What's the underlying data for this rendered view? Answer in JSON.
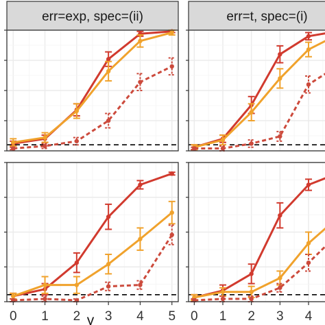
{
  "chart_data": {
    "type": "line",
    "x": [
      0,
      1,
      2,
      3,
      4,
      5
    ],
    "xlabel": "γ",
    "xlim": [
      -0.2,
      5.2
    ],
    "ylim": [
      0,
      1
    ],
    "grid": true,
    "colors": {
      "red": "#d13a2e",
      "orange": "#f0a22c",
      "dashed_red": "#cc4a3c",
      "reference": "#000000",
      "strip_bg": "#d9d9d9",
      "grid": "#ebebeb"
    },
    "panels": [
      {
        "strip_label": "err=exp, spec=(ii)",
        "reference_line": 0.05,
        "series": [
          {
            "color": "red",
            "dash": false,
            "values": [
              0.06,
              0.1,
              0.34,
              0.76,
              0.97,
              0.99
            ],
            "errors": [
              0.02,
              0.03,
              0.05,
              0.06,
              0.02,
              0.01
            ]
          },
          {
            "color": "orange",
            "dash": false,
            "values": [
              0.07,
              0.11,
              0.33,
              0.66,
              0.91,
              0.98
            ],
            "errors": [
              0.03,
              0.04,
              0.06,
              0.08,
              0.05,
              0.02
            ]
          },
          {
            "color": "dashed_red",
            "dash": true,
            "values": [
              0.02,
              0.04,
              0.08,
              0.25,
              0.57,
              0.7
            ],
            "errors": [
              0.01,
              0.02,
              0.03,
              0.06,
              0.07,
              0.07
            ]
          }
        ]
      },
      {
        "strip_label": "err=t, spec=(i)",
        "reference_line": 0.05,
        "series": [
          {
            "color": "red",
            "dash": false,
            "values": [
              0.03,
              0.1,
              0.38,
              0.8,
              0.95,
              0.99
            ],
            "errors": [
              0.02,
              0.03,
              0.07,
              0.07,
              0.03,
              0.01
            ]
          },
          {
            "color": "orange",
            "dash": false,
            "values": [
              0.03,
              0.09,
              0.32,
              0.6,
              0.84,
              0.96
            ],
            "errors": [
              0.02,
              0.04,
              0.07,
              0.08,
              0.06,
              0.03
            ]
          },
          {
            "color": "dashed_red",
            "dash": true,
            "values": [
              0.02,
              0.02,
              0.06,
              0.12,
              0.55,
              0.7
            ],
            "errors": [
              0.01,
              0.02,
              0.03,
              0.04,
              0.07,
              0.07
            ]
          }
        ]
      },
      {
        "strip_label": "",
        "reference_line": 0.05,
        "series": [
          {
            "color": "red",
            "dash": false,
            "values": [
              0.04,
              0.09,
              0.28,
              0.61,
              0.84,
              0.92
            ],
            "errors": [
              0.02,
              0.04,
              0.07,
              0.09,
              0.03,
              0.01
            ]
          },
          {
            "color": "orange",
            "dash": false,
            "values": [
              0.04,
              0.12,
              0.12,
              0.27,
              0.45,
              0.64
            ],
            "errors": [
              0.02,
              0.06,
              0.06,
              0.07,
              0.08,
              0.08
            ]
          },
          {
            "color": "dashed_red",
            "dash": true,
            "values": [
              0.01,
              0.02,
              0.01,
              0.11,
              0.12,
              0.48
            ],
            "errors": [
              0.01,
              0.02,
              0.01,
              0.03,
              0.03,
              0.07
            ]
          }
        ]
      },
      {
        "strip_label": "",
        "reference_line": 0.05,
        "series": [
          {
            "color": "red",
            "dash": false,
            "values": [
              0.03,
              0.08,
              0.2,
              0.62,
              0.84,
              0.92
            ],
            "errors": [
              0.02,
              0.04,
              0.07,
              0.09,
              0.04,
              0.01
            ]
          },
          {
            "color": "orange",
            "dash": false,
            "values": [
              0.03,
              0.07,
              0.07,
              0.17,
              0.42,
              0.6
            ],
            "errors": [
              0.02,
              0.03,
              0.04,
              0.05,
              0.08,
              0.08
            ]
          },
          {
            "color": "dashed_red",
            "dash": true,
            "values": [
              0.01,
              0.02,
              0.02,
              0.1,
              0.28,
              0.48
            ],
            "errors": [
              0.01,
              0.02,
              0.02,
              0.03,
              0.06,
              0.07
            ]
          }
        ]
      }
    ],
    "x_tick_labels": [
      [
        "0",
        "1",
        "2",
        "3",
        "4",
        "5"
      ],
      [
        "0",
        "1",
        "2",
        "3",
        "4"
      ]
    ]
  }
}
